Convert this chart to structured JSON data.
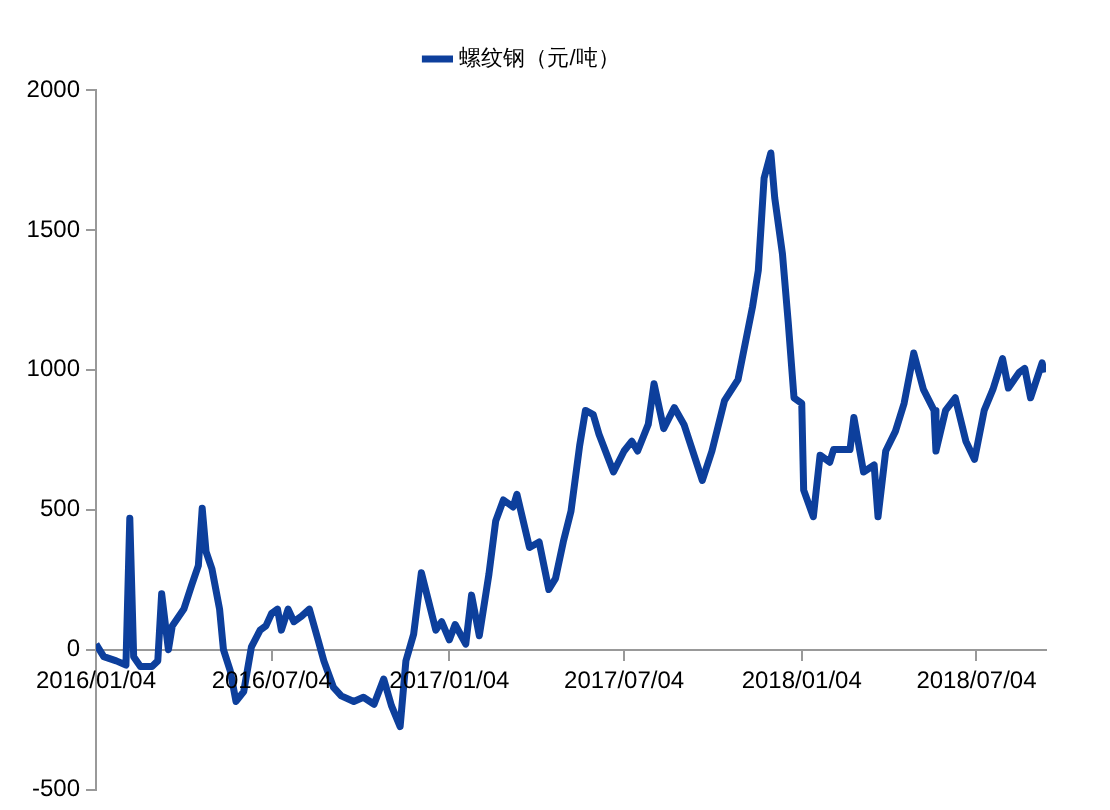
{
  "chart_data": {
    "type": "line",
    "x": [
      "2016-01-04",
      "2016-01-12",
      "2016-01-25",
      "2016-02-04",
      "2016-02-08",
      "2016-02-12",
      "2016-02-19",
      "2016-03-02",
      "2016-03-08",
      "2016-03-12",
      "2016-03-19",
      "2016-03-23",
      "2016-04-04",
      "2016-04-12",
      "2016-04-19",
      "2016-04-23",
      "2016-04-27",
      "2016-05-03",
      "2016-05-11",
      "2016-05-15",
      "2016-05-22",
      "2016-05-28",
      "2016-06-05",
      "2016-06-13",
      "2016-06-22",
      "2016-06-28",
      "2016-07-04",
      "2016-07-10",
      "2016-07-14",
      "2016-07-21",
      "2016-07-27",
      "2016-08-04",
      "2016-08-12",
      "2016-08-21",
      "2016-08-27",
      "2016-09-06",
      "2016-09-14",
      "2016-09-27",
      "2016-10-07",
      "2016-10-18",
      "2016-10-28",
      "2016-11-05",
      "2016-11-14",
      "2016-11-20",
      "2016-11-28",
      "2016-12-06",
      "2016-12-13",
      "2016-12-21",
      "2016-12-27",
      "2017-01-04",
      "2017-01-10",
      "2017-01-21",
      "2017-01-27",
      "2017-02-04",
      "2017-02-14",
      "2017-02-21",
      "2017-03-01",
      "2017-03-11",
      "2017-03-15",
      "2017-03-28",
      "2017-04-07",
      "2017-04-17",
      "2017-04-24",
      "2017-05-02",
      "2017-05-10",
      "2017-05-19",
      "2017-05-25",
      "2017-06-02",
      "2017-06-08",
      "2017-06-23",
      "2017-07-04",
      "2017-07-12",
      "2017-07-18",
      "2017-07-29",
      "2017-08-04",
      "2017-08-14",
      "2017-08-25",
      "2017-09-04",
      "2017-09-23",
      "2017-10-03",
      "2017-10-16",
      "2017-10-30",
      "2017-11-14",
      "2017-11-20",
      "2017-11-26",
      "2017-12-03",
      "2017-12-07",
      "2017-12-15",
      "2017-12-21",
      "2017-12-27",
      "2018-01-04",
      "2018-01-06",
      "2018-01-16",
      "2018-01-23",
      "2018-02-02",
      "2018-02-06",
      "2018-02-23",
      "2018-02-27",
      "2018-03-09",
      "2018-03-20",
      "2018-03-24",
      "2018-04-01",
      "2018-04-11",
      "2018-04-20",
      "2018-04-30",
      "2018-05-10",
      "2018-05-21",
      "2018-05-23",
      "2018-06-02",
      "2018-06-12",
      "2018-06-23",
      "2018-07-02",
      "2018-07-12",
      "2018-07-21",
      "2018-07-31",
      "2018-08-06",
      "2018-08-17",
      "2018-08-23",
      "2018-08-29",
      "2018-09-10",
      "2018-09-12"
    ],
    "series": [
      {
        "name": "螺纹钢（元/吨）",
        "color": "#0d3f9c",
        "values": [
          20,
          -25,
          -40,
          -55,
          470,
          -25,
          -60,
          -60,
          -40,
          200,
          0,
          85,
          145,
          230,
          300,
          505,
          350,
          290,
          145,
          0,
          -75,
          -185,
          -150,
          10,
          70,
          85,
          130,
          145,
          70,
          145,
          100,
          120,
          145,
          35,
          -40,
          -135,
          -165,
          -185,
          -170,
          -195,
          -105,
          -200,
          -275,
          -40,
          55,
          275,
          180,
          70,
          100,
          35,
          90,
          20,
          195,
          50,
          270,
          460,
          535,
          510,
          555,
          365,
          385,
          215,
          255,
          385,
          495,
          730,
          855,
          840,
          770,
          635,
          710,
          745,
          710,
          805,
          950,
          790,
          865,
          805,
          605,
          710,
          890,
          965,
          1225,
          1355,
          1685,
          1775,
          1615,
          1415,
          1170,
          900,
          880,
          570,
          475,
          695,
          670,
          715,
          715,
          830,
          635,
          660,
          475,
          710,
          780,
          880,
          1060,
          930,
          855,
          710,
          855,
          900,
          745,
          680,
          855,
          930,
          1040,
          935,
          990,
          1005,
          900,
          1025,
          990
        ]
      }
    ],
    "xlim": [
      "2016-01-04",
      "2018-09-14"
    ],
    "xticks": [
      {
        "value": "2016-01-04",
        "label": "2016/01/04"
      },
      {
        "value": "2016-07-04",
        "label": "2016/07/04"
      },
      {
        "value": "2017-01-04",
        "label": "2017/01/04"
      },
      {
        "value": "2017-07-04",
        "label": "2017/07/04"
      },
      {
        "value": "2018-01-04",
        "label": "2018/01/04"
      },
      {
        "value": "2018-07-04",
        "label": "2018/07/04"
      }
    ],
    "ylim": [
      -500,
      2000
    ],
    "yticks": [
      -500,
      0,
      500,
      1000,
      1500,
      2000
    ],
    "grid": false,
    "legend": "top",
    "marker": "none",
    "line_style": "solid"
  }
}
